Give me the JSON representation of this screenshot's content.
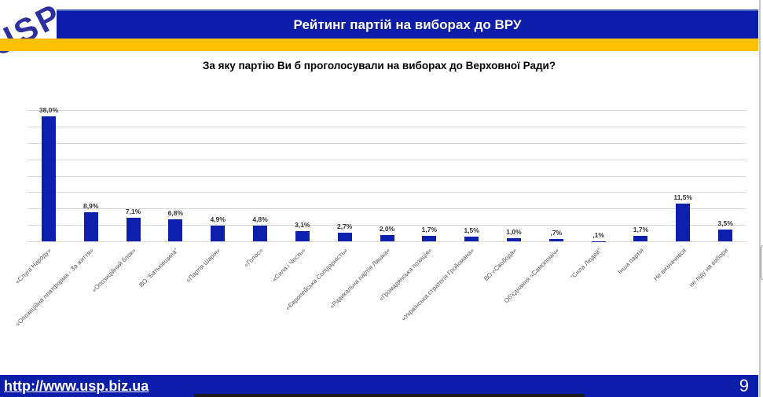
{
  "header": {
    "logo": "USP",
    "title": "Рейтинг партій на виборах до ВРУ"
  },
  "chart_data": {
    "type": "bar",
    "title": "За яку партію Ви б проголосували на виборах до Верховної Ради?",
    "categories": [
      "«Слуга Народу»",
      "«Опозиційна платформа - За життя»",
      "«Опозиційний блок»",
      "ВО \"Батьківщина\"",
      "«Партія Шарія»",
      "«Голос»",
      "«Сила і Честь»",
      "«Європейська Солідарність»",
      "«Радикальна партія Ляшка»",
      "«Громадянська позиція»",
      "«Українська стратегія Гройсмана»",
      "ВО «Свобода»",
      "Об'єднання «Самопоміч»",
      "\"Сила Людей\"",
      "Інша партія",
      "Не визначився",
      "не піду на вибори"
    ],
    "values": [
      38.0,
      8.9,
      7.1,
      6.8,
      4.9,
      4.8,
      3.1,
      2.7,
      2.0,
      1.7,
      1.5,
      1.0,
      0.7,
      0.1,
      1.7,
      11.5,
      3.5
    ],
    "value_labels": [
      "38,0%",
      "8,9%",
      "7,1%",
      "6,8%",
      "4,9%",
      "4,8%",
      "3,1%",
      "2,7%",
      "2,0%",
      "1,7%",
      "1,5%",
      "1,0%",
      ",7%",
      ",1%",
      "1,7%",
      "11,5%",
      "3,5%"
    ],
    "xlabel": "",
    "ylabel": "",
    "ylim": [
      0,
      40
    ],
    "grid_step": 5,
    "grid": true,
    "legend": false,
    "bar_color": "#0d1fad",
    "label_color": "#333333",
    "category_label_color": "#595959"
  },
  "footer": {
    "url": "http://www.usp.biz.ua",
    "page_number": "9"
  },
  "colors": {
    "brand_blue": "#0c1ea9",
    "accent_yellow": "#ffc000",
    "gridline_gray": "#d9d9d9"
  }
}
